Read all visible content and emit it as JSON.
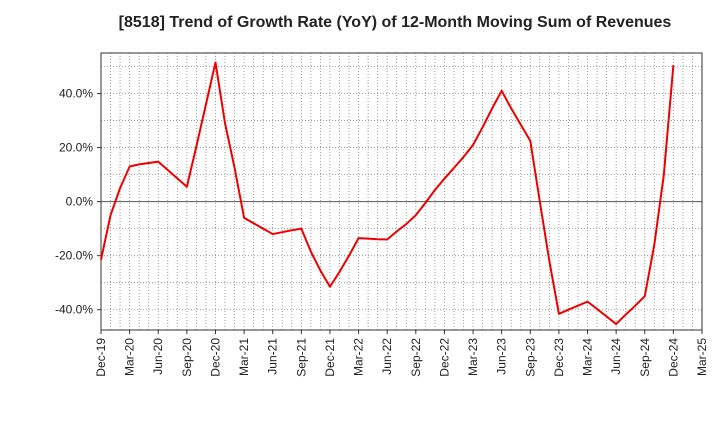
{
  "chart_data": {
    "type": "line",
    "title": "[8518]  Trend of Growth Rate (YoY) of 12-Month Moving Sum of Revenues",
    "xlabel": "",
    "ylabel": "",
    "x_ticks": [
      "Dec-19",
      "Mar-20",
      "Jun-20",
      "Sep-20",
      "Dec-20",
      "Mar-21",
      "Jun-21",
      "Sep-21",
      "Dec-21",
      "Mar-22",
      "Jun-22",
      "Sep-22",
      "Dec-22",
      "Mar-23",
      "Jun-23",
      "Sep-23",
      "Dec-23",
      "Mar-24",
      "Jun-24",
      "Sep-24",
      "Dec-24",
      "Mar-25"
    ],
    "y_ticks": [
      "40.0%",
      "20.0%",
      "0.0%",
      "-20.0%",
      "-40.0%"
    ],
    "y_tick_values": [
      40,
      20,
      0,
      -20,
      -40
    ],
    "ylim": [
      -47.5,
      55
    ],
    "grid": true,
    "series": [
      {
        "color": "#ee0000",
        "x": [
          "Dec-19",
          "Jan-20",
          "Feb-20",
          "Mar-20",
          "Apr-20",
          "May-20",
          "Jun-20",
          "Jul-20",
          "Aug-20",
          "Sep-20",
          "Oct-20",
          "Nov-20",
          "Dec-20",
          "Jan-21",
          "Feb-21",
          "Mar-21",
          "Apr-21",
          "May-21",
          "Jun-21",
          "Jul-21",
          "Aug-21",
          "Sep-21",
          "Oct-21",
          "Nov-21",
          "Dec-21",
          "Jan-22",
          "Feb-22",
          "Mar-22",
          "Apr-22",
          "May-22",
          "Jun-22",
          "Jul-22",
          "Aug-22",
          "Sep-22",
          "Oct-22",
          "Nov-22",
          "Dec-22",
          "Jan-23",
          "Feb-23",
          "Mar-23",
          "Apr-23",
          "May-23",
          "Jun-23",
          "Jul-23",
          "Aug-23",
          "Sep-23",
          "Oct-23",
          "Nov-23",
          "Dec-23",
          "Jan-24",
          "Feb-24",
          "Mar-24",
          "Apr-24",
          "May-24",
          "Jun-24",
          "Jul-24",
          "Aug-24",
          "Sep-24",
          "Oct-24",
          "Nov-24",
          "Dec-24"
        ],
        "values": [
          -21.5,
          -5.0,
          5.0,
          13.0,
          13.8,
          14.3,
          14.8,
          11.7,
          8.6,
          5.5,
          20.5,
          36.0,
          51.5,
          29.0,
          12.5,
          -6.0,
          -8.0,
          -10.0,
          -12.0,
          -11.3,
          -10.6,
          -10.0,
          -18.5,
          -25.5,
          -31.5,
          -26.0,
          -20.0,
          -13.5,
          -13.7,
          -13.9,
          -14.0,
          -11.0,
          -8.3,
          -5.0,
          -0.5,
          4.3,
          8.5,
          12.5,
          16.5,
          21.0,
          27.5,
          34.5,
          41.0,
          34.5,
          28.5,
          22.5,
          0.0,
          -22.0,
          -41.5,
          -40.0,
          -38.5,
          -37.0,
          -39.7,
          -42.5,
          -45.3,
          -41.8,
          -38.5,
          -35.0,
          -16.0,
          10.0,
          50.5
        ]
      }
    ]
  }
}
